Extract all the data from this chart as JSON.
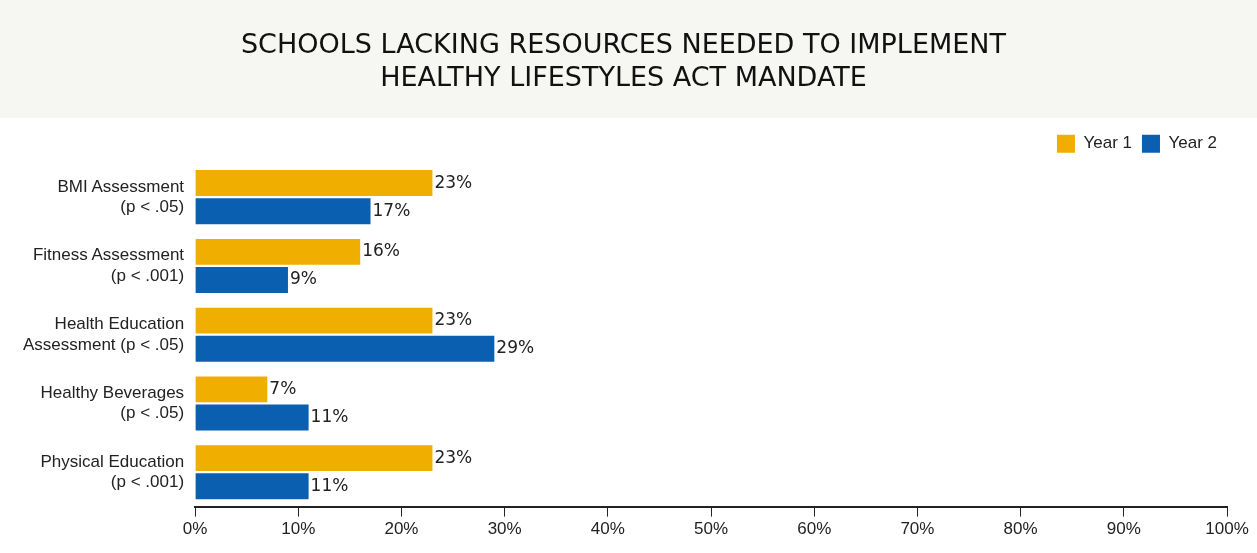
{
  "chart_data": {
    "type": "bar",
    "orientation": "horizontal",
    "title": "SCHOOLS LACKING RESOURCES NEEDED TO IMPLEMENT\nHEALTHY LIFESTYLES ACT MANDATE",
    "categories": [
      "BMI Assessment\n(p < .05)",
      "Fitness Assessment\n(p < .001)",
      "Health Education\nAssessment (p < .05)",
      "Healthy Beverages\n(p < .05)",
      "Physical Education\n(p < .001)"
    ],
    "series": [
      {
        "name": "Year 1",
        "color": "#f0ae00",
        "values": [
          23,
          16,
          23,
          7,
          23
        ],
        "value_labels": [
          "23%",
          "16%",
          "23%",
          "7%",
          "23%"
        ]
      },
      {
        "name": "Year 2",
        "color": "#0a5fb0",
        "values": [
          17,
          9,
          29,
          11,
          11
        ],
        "value_labels": [
          "17%",
          "9%",
          "29%",
          "11%",
          "11%"
        ]
      }
    ],
    "xlim": [
      0,
      100
    ],
    "xticks": [
      {
        "value": 0,
        "label": "0%"
      },
      {
        "value": 10,
        "label": "10%"
      },
      {
        "value": 20,
        "label": "20%"
      },
      {
        "value": 30,
        "label": "30%"
      },
      {
        "value": 40,
        "label": "40%"
      },
      {
        "value": 50,
        "label": "50%"
      },
      {
        "value": 60,
        "label": "60%"
      },
      {
        "value": 70,
        "label": "70%"
      },
      {
        "value": 80,
        "label": "80%"
      },
      {
        "value": 90,
        "label": "90%"
      },
      {
        "value": 100,
        "label": "100%"
      }
    ],
    "grid": false,
    "legend": "top right"
  }
}
